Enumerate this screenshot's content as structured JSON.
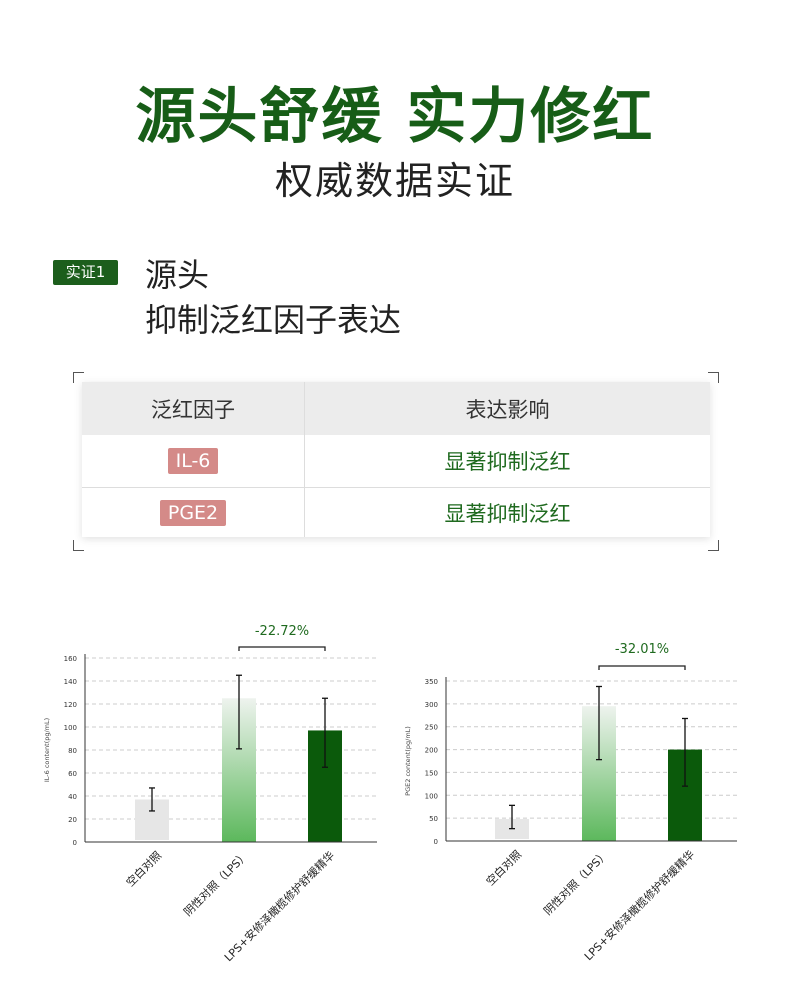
{
  "header": {
    "title": "源头舒缓 实力修红",
    "subtitle": "权威数据实证"
  },
  "section": {
    "badge": "实证1",
    "heading_line1": "源头",
    "heading_line2": "抑制泛红因子表达"
  },
  "table": {
    "headers": [
      "泛红因子",
      "表达影响"
    ],
    "rows": [
      {
        "factor": "IL-6",
        "effect": "显著抑制泛红"
      },
      {
        "factor": "PGE2",
        "effect": "显著抑制泛红"
      }
    ]
  },
  "colors": {
    "brand_green": "#175d17",
    "bar_blank": "#e6e6e6",
    "bar_lps_top": "#eef3ee",
    "bar_lps_bottom": "#5cb85c",
    "bar_product": "#0b5a0b",
    "pill": "#d48a88"
  },
  "chart_data": [
    {
      "type": "bar",
      "ylabel": "IL-6 content(pg/mL)",
      "ylim": [
        0,
        160
      ],
      "yticks": [
        0,
        20,
        40,
        60,
        80,
        100,
        120,
        140,
        160
      ],
      "grid": true,
      "categories": [
        "空白对照",
        "阴性对照（LPS）",
        "LPS+安修泽橄榄修护舒缓精华"
      ],
      "values": [
        37,
        125,
        97
      ],
      "error_low": [
        27,
        81,
        65
      ],
      "error_high": [
        47,
        145,
        125
      ],
      "annotation": "-22.72%"
    },
    {
      "type": "bar",
      "ylabel": "PGE2 content(pg/mL)",
      "ylim": [
        0,
        350
      ],
      "yticks": [
        0,
        50,
        100,
        150,
        200,
        250,
        300,
        350
      ],
      "grid": true,
      "categories": [
        "空白对照",
        "阴性对照（LPS）",
        "LPS+安修泽橄榄修护舒缓精华"
      ],
      "values": [
        48,
        295,
        200
      ],
      "error_low": [
        27,
        178,
        120
      ],
      "error_high": [
        78,
        338,
        268
      ],
      "annotation": "-32.01%"
    }
  ]
}
